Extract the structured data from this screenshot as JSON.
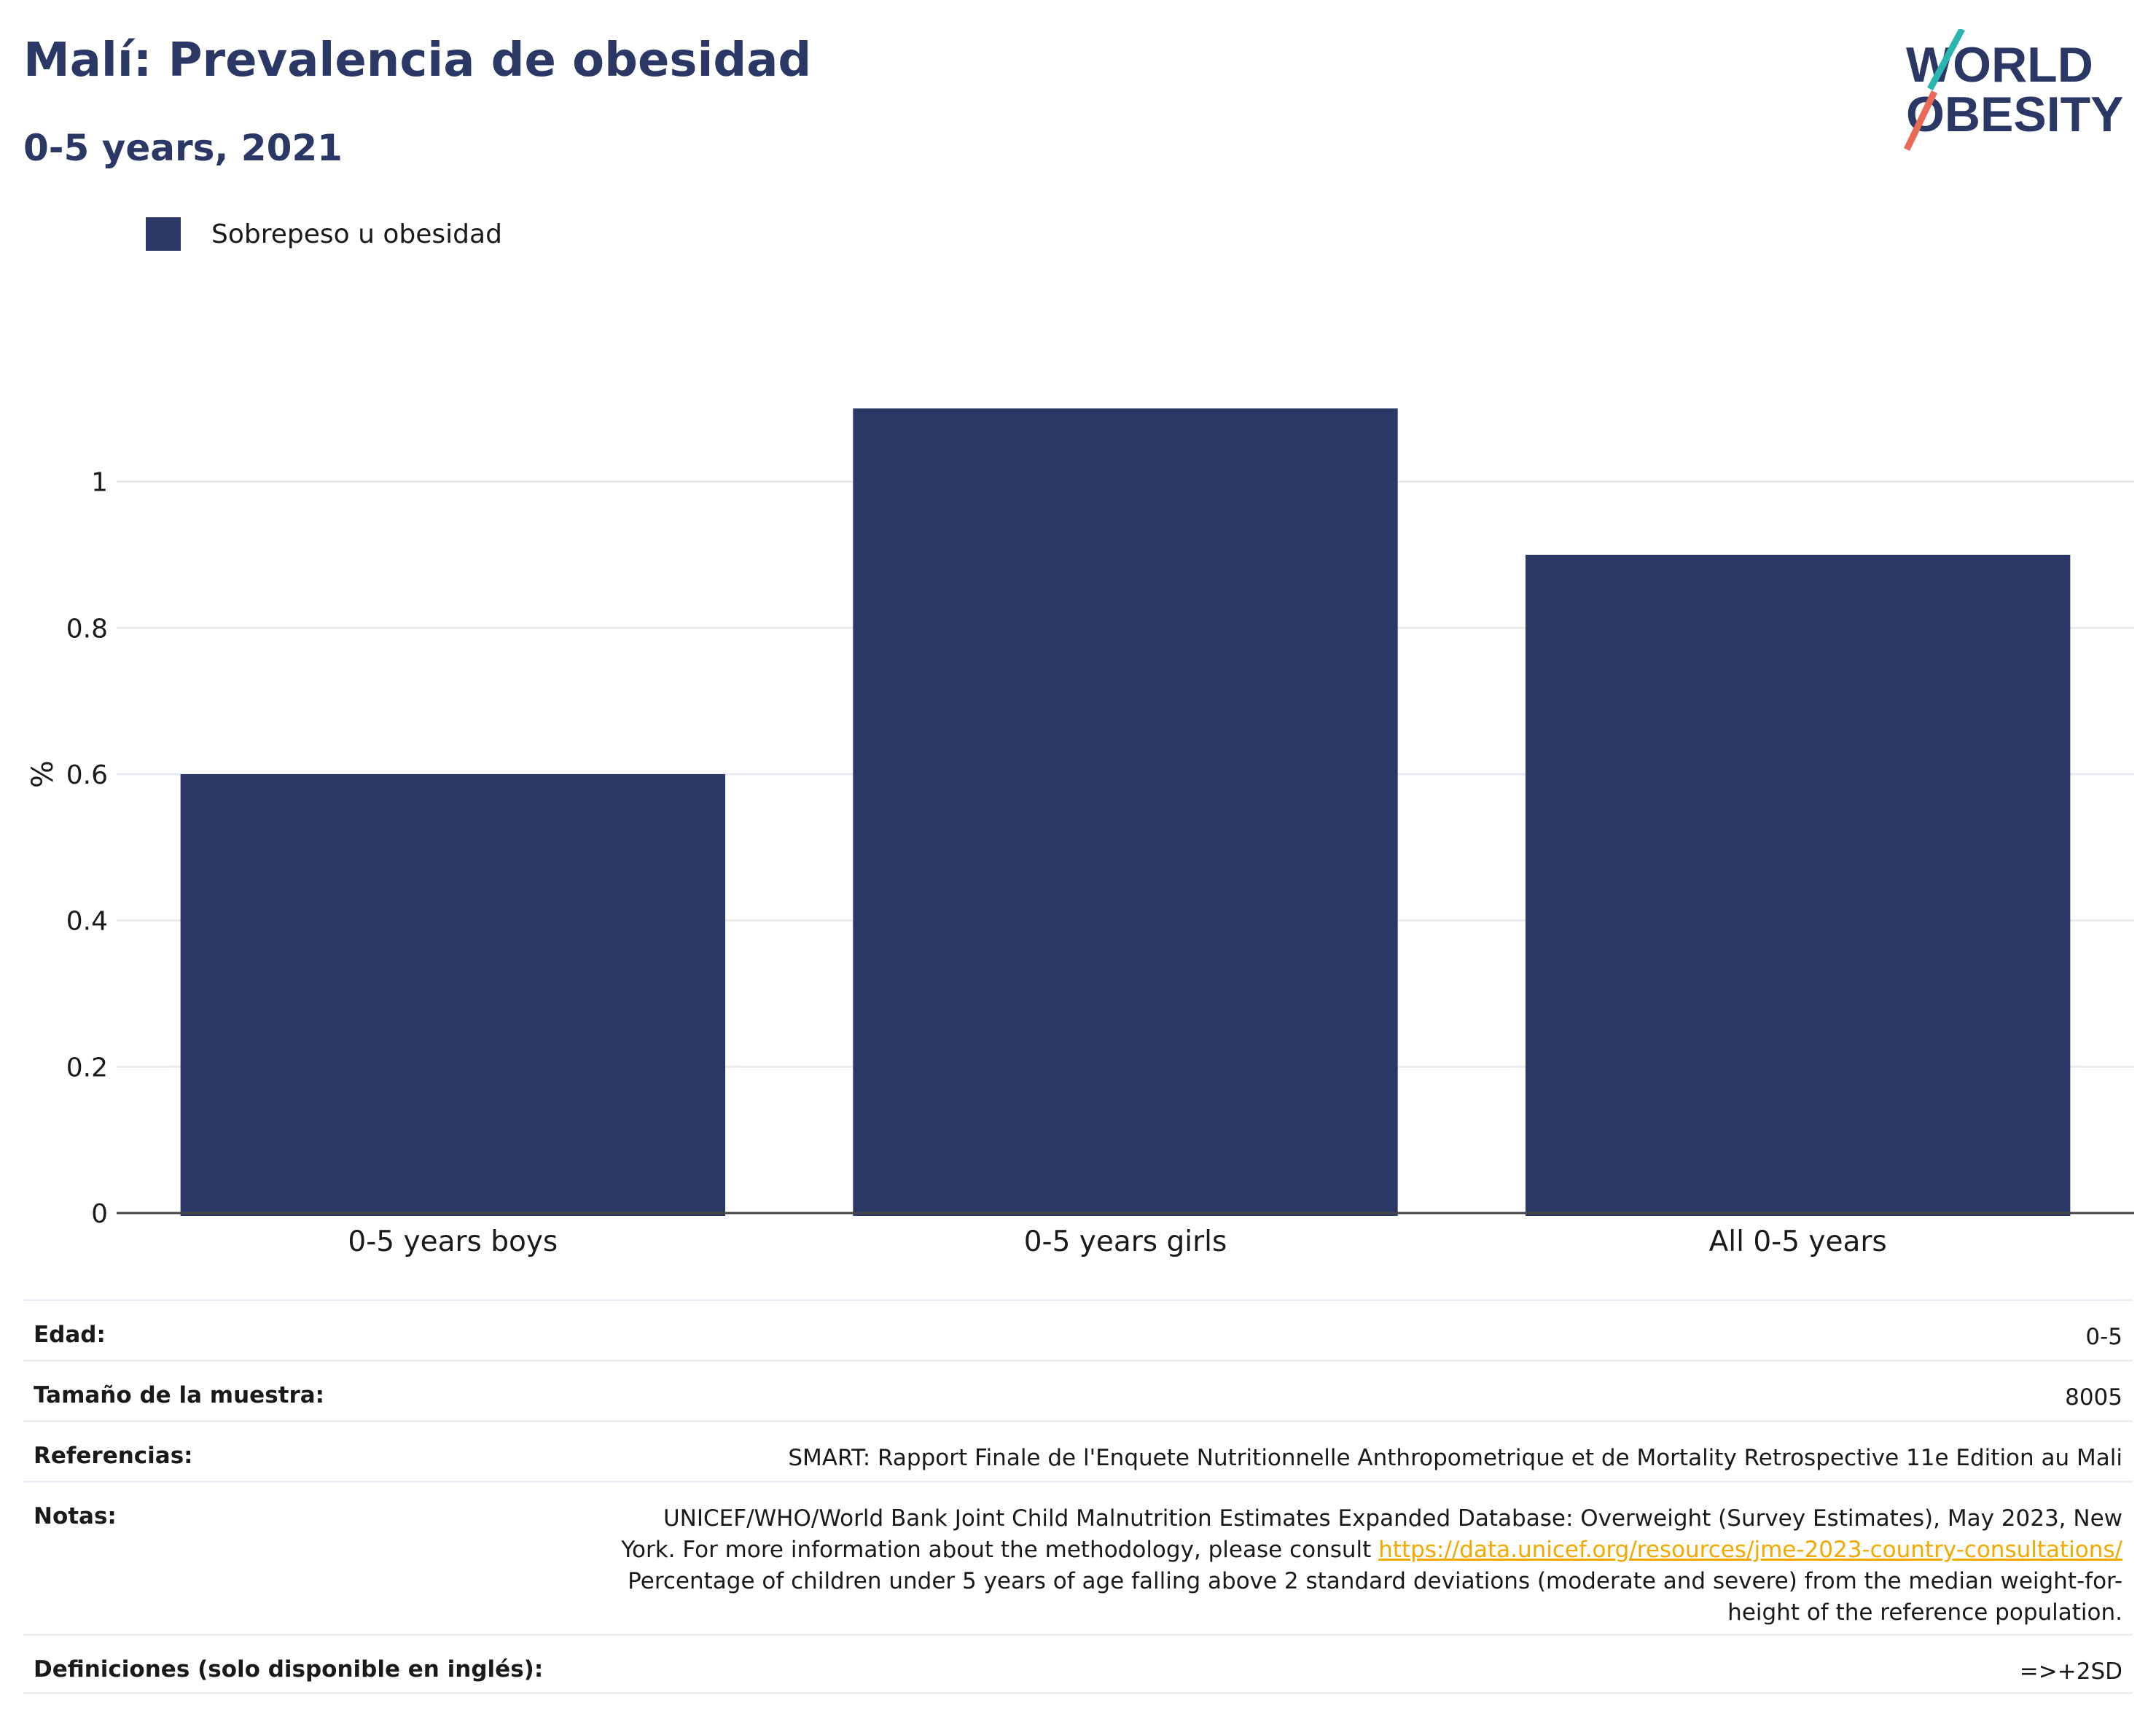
{
  "title": "Malí: Prevalencia de obesidad",
  "subtitle": "0-5 years, 2021",
  "logo": {
    "line1": "WORLD",
    "line2": "OBESITY"
  },
  "colors": {
    "bar": "#2b3764",
    "title": "#2b3764",
    "link": "#f2a900",
    "logo_teal": "#2bb5b0",
    "logo_coral": "#e96a56"
  },
  "legend": {
    "label": "Sobrepeso u obesidad"
  },
  "chart_data": {
    "type": "bar",
    "categories": [
      "0-5 years boys",
      "0-5 years girls",
      "All 0-5 years"
    ],
    "series": [
      {
        "name": "Sobrepeso u obesidad",
        "values": [
          0.6,
          1.1,
          0.9
        ]
      }
    ],
    "ylabel": "%",
    "ylim": [
      0,
      1.2
    ],
    "yticks": [
      0,
      0.2,
      0.4,
      0.6,
      0.8,
      1
    ],
    "grid": true,
    "legend_position": "top-left"
  },
  "meta": {
    "age_label": "Edad:",
    "age_value": "0-5",
    "sample_label": "Tamaño de la muestra:",
    "sample_value": "8005",
    "refs_label": "Referencias:",
    "refs_value": "SMART: Rapport Finale de l'Enquete Nutritionnelle Anthropometrique et de Mortality Retrospective 11e Edition au Mali",
    "notes_label": "Notas:",
    "notes_line1": "UNICEF/WHO/World Bank Joint Child Malnutrition Estimates Expanded Database: Overweight (Survey Estimates), May 2023, New",
    "notes_line2_pre": "York. For more information about the methodology, please consult ",
    "notes_link": "https://data.unicef.org/resources/jme-2023-country-consultations/",
    "notes_line3": "Percentage of children under 5 years of age falling above 2 standard deviations (moderate and severe) from the median weight-for-",
    "notes_line4": "height of the reference population.",
    "defs_label": "Definiciones (solo disponible en inglés):",
    "defs_value": "=>+2SD"
  }
}
